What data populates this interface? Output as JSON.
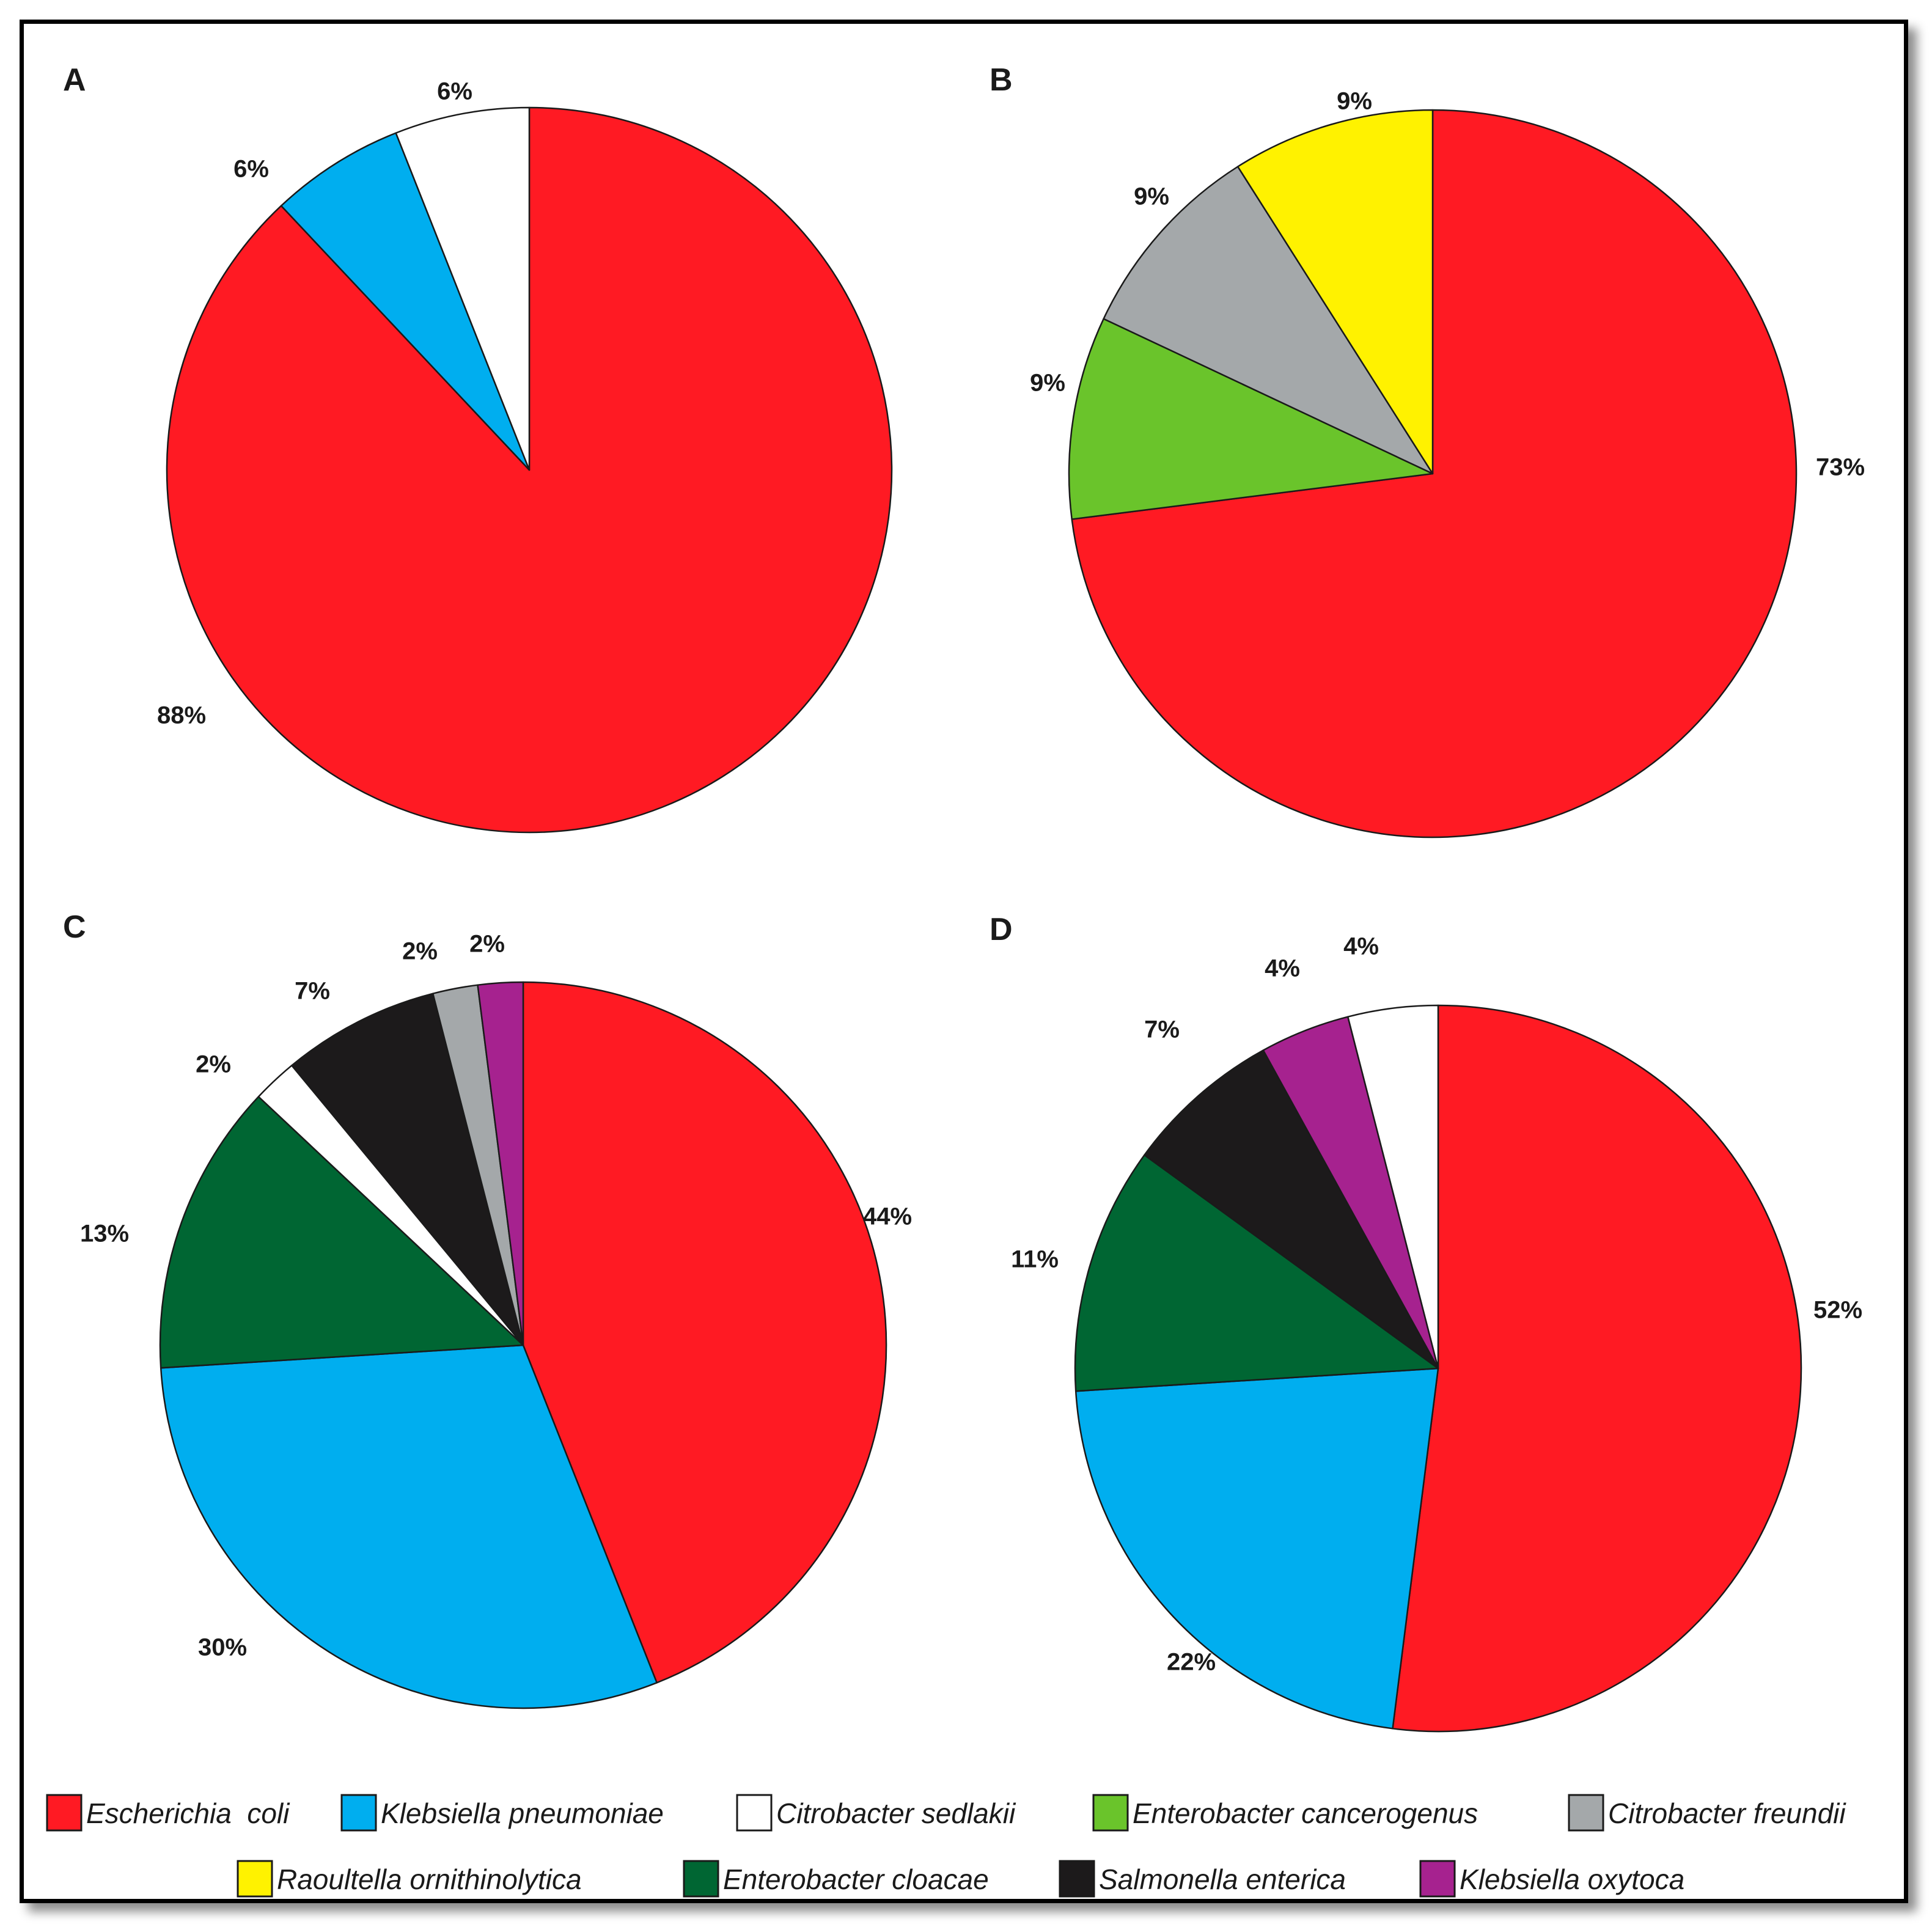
{
  "legend": [
    {
      "label": "Escherichia  coli",
      "color": "#ff1a23"
    },
    {
      "label": "Klebsiella pneumoniae",
      "color": "#00aeef"
    },
    {
      "label": "Citrobacter sedlakii",
      "color": "#ffffff"
    },
    {
      "label": "Enterobacter cancerogenus",
      "color": "#6ac42b"
    },
    {
      "label": "Citrobacter freundii",
      "color": "#a4a8aa"
    },
    {
      "label": "Raoultella ornithinolytica",
      "color": "#fff200"
    },
    {
      "label": "Enterobacter cloacae",
      "color": "#006633"
    },
    {
      "label": "Salmonella enterica",
      "color": "#1c1a1b"
    },
    {
      "label": "Klebsiella oxytoca",
      "color": "#a6228f"
    }
  ],
  "chart_data": [
    {
      "type": "pie",
      "panel": "A",
      "slices": [
        {
          "series": "Escherichia  coli",
          "value": 88,
          "label": "88%"
        },
        {
          "series": "Klebsiella pneumoniae",
          "value": 6,
          "label": "6%"
        },
        {
          "series": "Citrobacter sedlakii",
          "value": 6,
          "label": "6%"
        }
      ]
    },
    {
      "type": "pie",
      "panel": "B",
      "slices": [
        {
          "series": "Escherichia  coli",
          "value": 73,
          "label": "73%"
        },
        {
          "series": "Enterobacter cancerogenus",
          "value": 9,
          "label": "9%"
        },
        {
          "series": "Citrobacter freundii",
          "value": 9,
          "label": "9%"
        },
        {
          "series": "Raoultella ornithinolytica",
          "value": 9,
          "label": "9%"
        }
      ]
    },
    {
      "type": "pie",
      "panel": "C",
      "slices": [
        {
          "series": "Escherichia  coli",
          "value": 44,
          "label": "44%"
        },
        {
          "series": "Klebsiella pneumoniae",
          "value": 30,
          "label": "30%"
        },
        {
          "series": "Enterobacter cloacae",
          "value": 13,
          "label": "13%"
        },
        {
          "series": "Citrobacter sedlakii",
          "value": 2,
          "label": "2%"
        },
        {
          "series": "Salmonella enterica",
          "value": 7,
          "label": "7%"
        },
        {
          "series": "Citrobacter freundii",
          "value": 2,
          "label": "2%"
        },
        {
          "series": "Klebsiella oxytoca",
          "value": 2,
          "label": "2%"
        }
      ]
    },
    {
      "type": "pie",
      "panel": "D",
      "slices": [
        {
          "series": "Escherichia  coli",
          "value": 52,
          "label": "52%"
        },
        {
          "series": "Klebsiella pneumoniae",
          "value": 22,
          "label": "22%"
        },
        {
          "series": "Enterobacter cloacae",
          "value": 11,
          "label": "11%"
        },
        {
          "series": "Salmonella enterica",
          "value": 7,
          "label": "7%"
        },
        {
          "series": "Klebsiella oxytoca",
          "value": 4,
          "label": "4%"
        },
        {
          "series": "Citrobacter sedlakii",
          "value": 4,
          "label": "4%"
        }
      ]
    }
  ]
}
